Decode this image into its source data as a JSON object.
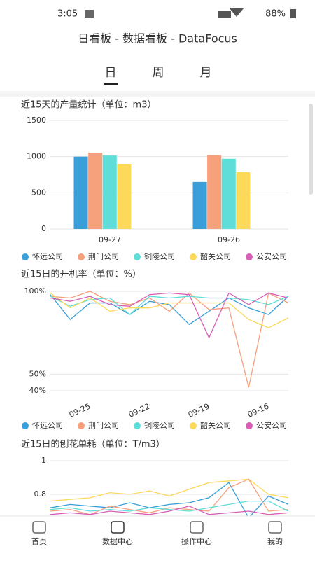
{
  "status_bar": {
    "time": "3:05",
    "battery": "88%"
  },
  "header": {
    "title": "日看板 - 数据看板 - DataFocus"
  },
  "tabs": [
    "日",
    "周",
    "月"
  ],
  "chart_data": [
    {
      "type": "bar",
      "title": "近15天的产量统计（单位：m3）",
      "categories": [
        "09-27",
        "09-26"
      ],
      "series": [
        {
          "name": "怀远公司",
          "color": "#3a9fd8",
          "values": [
            1000,
            650
          ]
        },
        {
          "name": "荆门公司",
          "color": "#f7a07c",
          "values": [
            1055,
            1020
          ]
        },
        {
          "name": "铜陵公司",
          "color": "#5fddd9",
          "values": [
            1015,
            970
          ]
        },
        {
          "name": "韶关公司",
          "color": "#fcd95b",
          "values": [
            900,
            785
          ]
        },
        {
          "name": "公安公司",
          "color": "#d65fb5",
          "values": [
            null,
            null
          ]
        }
      ],
      "ylim": [
        0,
        1500
      ],
      "yticks": [
        0,
        500,
        1000,
        1500
      ],
      "grid": true
    },
    {
      "type": "line",
      "title": "近15日的开机率（单位：%）",
      "categories": [
        null,
        null,
        "09-25",
        null,
        null,
        "09-22",
        null,
        null,
        "09-19",
        null,
        null,
        "09-16",
        null
      ],
      "series": [
        {
          "name": "怀远公司",
          "color": "#3a9fd8",
          "values": [
            98,
            83,
            93,
            93,
            86,
            94,
            92,
            80,
            88,
            96,
            90,
            86,
            97
          ]
        },
        {
          "name": "荆门公司",
          "color": "#f7a07c",
          "values": [
            97,
            96,
            100,
            94,
            92,
            96,
            88,
            99,
            89,
            90,
            42,
            99,
            93
          ]
        },
        {
          "name": "铜陵公司",
          "color": "#5fddd9",
          "values": [
            97,
            91,
            95,
            96,
            86,
            97,
            96,
            97,
            96,
            96,
            95,
            92,
            97
          ]
        },
        {
          "name": "韶关公司",
          "color": "#fcd95b",
          "values": [
            99,
            90,
            96,
            88,
            90,
            90,
            93,
            93,
            93,
            93,
            83,
            78,
            84
          ]
        },
        {
          "name": "公安公司",
          "color": "#d65fb5",
          "values": [
            96,
            94,
            97,
            92,
            91,
            98,
            99,
            98,
            72,
            99,
            92,
            99,
            96
          ]
        }
      ],
      "ylim": [
        40,
        100
      ],
      "yticks": [
        {
          "value": 40,
          "label": "40%"
        },
        {
          "value": 50,
          "label": "50%"
        },
        {
          "value": 100,
          "label": "100%"
        }
      ],
      "grid": true
    },
    {
      "type": "line",
      "title": "近15日的刨花单耗（单位：T/m3）",
      "series": [
        {
          "name": "韶关公司",
          "color": "#fcd95b",
          "values": [
            0.76,
            0.77,
            0.78,
            0.81,
            0.8,
            0.82,
            0.79,
            0.83,
            0.87,
            0.88,
            0.89,
            0.8,
            0.78
          ]
        },
        {
          "name": "怀远公司",
          "color": "#3a9fd8",
          "values": [
            0.72,
            0.74,
            0.73,
            0.72,
            0.75,
            0.72,
            0.74,
            0.75,
            0.78,
            0.87,
            0.66,
            0.79,
            0.74
          ]
        },
        {
          "name": "荆门公司",
          "color": "#f7a07c",
          "values": [
            0.7,
            0.71,
            0.68,
            0.73,
            0.71,
            0.69,
            0.72,
            0.71,
            0.7,
            0.84,
            0.89,
            0.7,
            0.71
          ]
        },
        {
          "name": "铜陵公司",
          "color": "#5fddd9",
          "values": [
            0.71,
            0.72,
            0.7,
            0.71,
            0.7,
            0.72,
            0.71,
            0.7,
            0.72,
            0.74,
            0.76,
            0.76,
            0.7
          ]
        },
        {
          "name": "公安公司",
          "color": "#d65fb5",
          "values": [
            0.68,
            0.69,
            0.68,
            0.7,
            0.69,
            0.68,
            0.7,
            0.73,
            0.68,
            0.69,
            0.7,
            0.68,
            0.69
          ]
        }
      ],
      "ylim": [
        0.6,
        1
      ],
      "yticks": [
        0.8,
        1
      ],
      "grid": true
    }
  ],
  "nav": [
    "首页",
    "数据中心",
    "操作中心",
    "我的"
  ]
}
